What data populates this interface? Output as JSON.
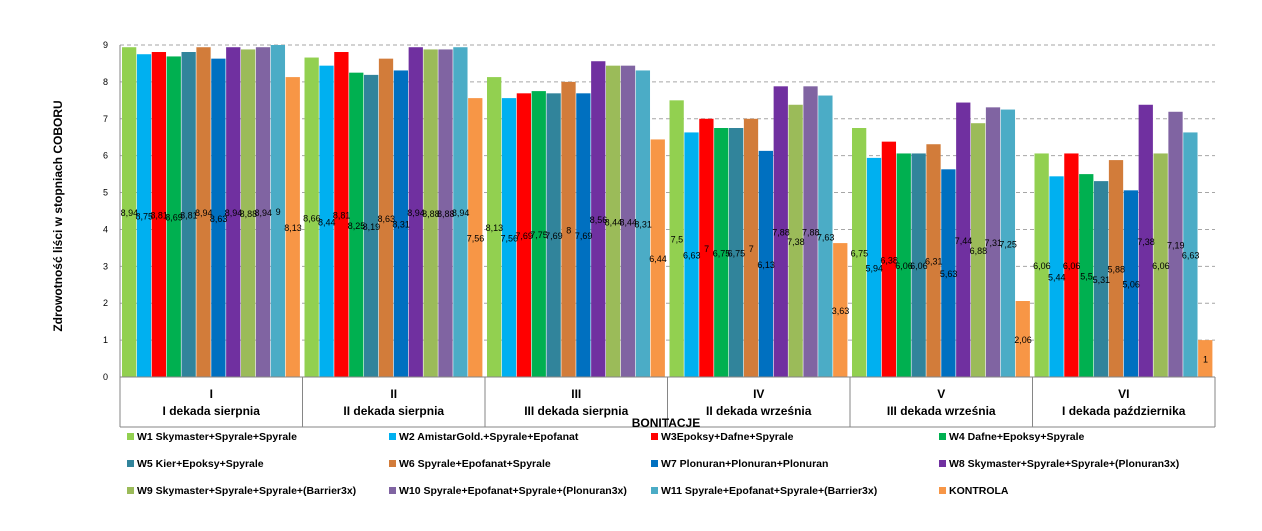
{
  "chart_data": {
    "type": "bar",
    "title": "",
    "xlabel": "BONITACJE",
    "ylabel": "Zdrowotność liści w stopniach COBORU",
    "ylim": [
      0,
      9
    ],
    "yticks": [
      "0",
      "1",
      "2",
      "3",
      "4",
      "5",
      "6",
      "7",
      "8",
      "9"
    ],
    "grid": "horizontal dashed",
    "legend_position": "bottom",
    "categories": [
      {
        "roman": "I",
        "label": "I dekada sierpnia"
      },
      {
        "roman": "II",
        "label": "II dekada sierpnia"
      },
      {
        "roman": "III",
        "label": "III dekada sierpnia"
      },
      {
        "roman": "IV",
        "label": "II dekada września"
      },
      {
        "roman": "V",
        "label": "III dekada września"
      },
      {
        "roman": "VI",
        "label": "I dekada października"
      }
    ],
    "series": [
      {
        "name": "W1 Skymaster+Spyrale+Spyrale",
        "color": "#92d050",
        "values": [
          8.94,
          8.66,
          8.13,
          7.5,
          6.75,
          6.06
        ],
        "labels": [
          "8,94",
          "8,66",
          "8,13",
          "7,5",
          "6,75",
          "6,06"
        ]
      },
      {
        "name": "W2 AmistarGold.+Spyrale+Epofanat",
        "color": "#00b0f0",
        "values": [
          8.75,
          8.44,
          7.56,
          6.63,
          5.94,
          5.44
        ],
        "labels": [
          "8,75",
          "8,44",
          "7,56",
          "6,63",
          "5,94",
          "5,44"
        ]
      },
      {
        "name": "W3Epoksy+Dafne+Spyrale",
        "color": "#ff0000",
        "values": [
          8.81,
          8.81,
          7.69,
          7,
          6.38,
          6.06
        ],
        "labels": [
          "8,81",
          "8,81",
          "7,69",
          "7",
          "6,38",
          "6,06"
        ]
      },
      {
        "name": "W4 Dafne+Epoksy+Spyrale",
        "color": "#00b050",
        "values": [
          8.69,
          8.25,
          7.75,
          6.75,
          6.06,
          5.5
        ],
        "labels": [
          "8,69",
          "8,25",
          "7,75",
          "6,75",
          "6,06",
          "5,5"
        ]
      },
      {
        "name": "W5 Kier+Epoksy+Spyrale",
        "color": "#31849b",
        "values": [
          8.81,
          8.19,
          7.69,
          6.75,
          6.06,
          5.31
        ],
        "labels": [
          "8,81",
          "8,19",
          "7,69",
          "6,75",
          "6,06",
          "5,31"
        ]
      },
      {
        "name": "W6 Spyrale+Epofanat+Spyrale",
        "color": "#d27c3a",
        "values": [
          8.94,
          8.63,
          8,
          7,
          6.31,
          5.88
        ],
        "labels": [
          "8,94",
          "8,63",
          "8",
          "7",
          "6,31",
          "5,88"
        ]
      },
      {
        "name": "W7 Plonuran+Plonuran+Plonuran",
        "color": "#0070c0",
        "values": [
          8.63,
          8.31,
          7.69,
          6.13,
          5.63,
          5.06
        ],
        "labels": [
          "8,63",
          "8,31",
          "7,69",
          "6,13",
          "5,63",
          "5,06"
        ]
      },
      {
        "name": "W8 Skymaster+Spyrale+Spyrale+(Plonuran3x)",
        "color": "#7030a0",
        "values": [
          8.94,
          8.94,
          8.56,
          7.88,
          7.44,
          7.38
        ],
        "labels": [
          "8,94",
          "8,94",
          "8,56",
          "7,88",
          "7,44",
          "7,38"
        ]
      },
      {
        "name": "W9 Skymaster+Spyrale+Spyrale+(Barrier3x)",
        "color": "#9bbb59",
        "values": [
          8.88,
          8.88,
          8.44,
          7.38,
          6.88,
          6.06
        ],
        "labels": [
          "8,88",
          "8,88",
          "8,44",
          "7,38",
          "6,88",
          "6,06"
        ]
      },
      {
        "name": "W10 Spyrale+Epofanat+Spyrale+(Plonuran3x)",
        "color": "#8064a2",
        "values": [
          8.94,
          8.88,
          8.44,
          7.88,
          7.31,
          7.19
        ],
        "labels": [
          "8,94",
          "8,88",
          "8,44",
          "7,88",
          "7,31",
          "7,19"
        ]
      },
      {
        "name": "W11 Spyrale+Epofanat+Spyrale+(Barrier3x)",
        "color": "#4bacc6",
        "values": [
          9,
          8.94,
          8.31,
          7.63,
          7.25,
          6.63
        ],
        "labels": [
          "9",
          "8,94",
          "8,31",
          "7,63",
          "7,25",
          "6,63"
        ]
      },
      {
        "name": "KONTROLA",
        "color": "#f79646",
        "values": [
          8.13,
          7.56,
          6.44,
          3.63,
          2.06,
          1
        ],
        "labels": [
          "8,13",
          "7,56",
          "6,44",
          "3,63",
          "2,06",
          "1"
        ]
      }
    ]
  }
}
